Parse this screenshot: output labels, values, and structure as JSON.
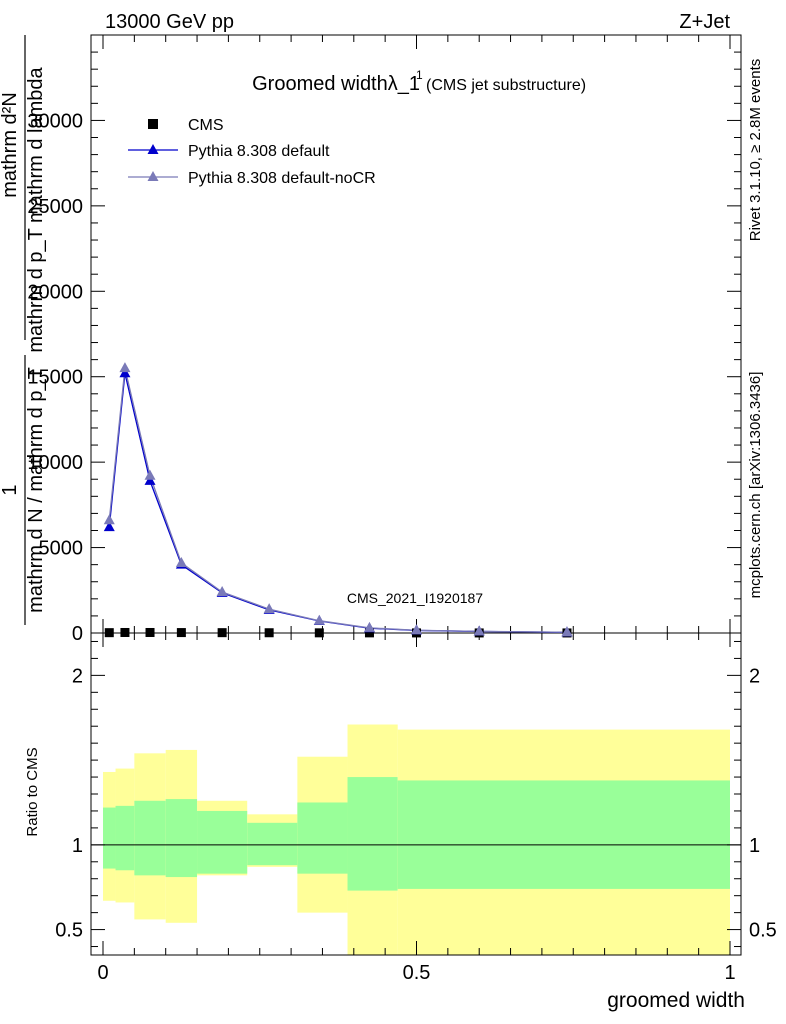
{
  "header": {
    "left": "13000 GeV pp",
    "right": "Z+Jet"
  },
  "side": {
    "rivet": "Rivet 3.1.10, ≥ 2.8M events",
    "mcplots": "mcplots.cern.ch [arXiv:1306.3436]"
  },
  "chart_data": [
    {
      "type": "line",
      "title": "Groomed widthλ_1",
      "title_sup": "1",
      "subtitle": "(CMS jet substructure)",
      "watermark": "CMS_2021_I1920187",
      "ylabel_num": "mathrm d²N",
      "ylabel_den": "mathrm d p_T mathrm d lambda",
      "ylabel_pre_num": "1",
      "ylabel_pre_den": "mathrm d N / mathrm d p_T",
      "xlim": [
        0,
        1
      ],
      "ylim": [
        0,
        35000
      ],
      "yticks": [
        0,
        5000,
        10000,
        15000,
        20000,
        25000,
        30000
      ],
      "legend_position": "top-left",
      "series": [
        {
          "name": "CMS",
          "marker": "square",
          "color": "#000000",
          "x": [
            0.01,
            0.035,
            0.075,
            0.125,
            0.19,
            0.265,
            0.345,
            0.425,
            0.5,
            0.6,
            0.74
          ],
          "y": [
            20,
            30,
            30,
            25,
            20,
            15,
            10,
            8,
            5,
            4,
            3
          ]
        },
        {
          "name": "Pythia 8.308 default",
          "marker": "triangle",
          "color": "#0000cc",
          "x": [
            0.01,
            0.035,
            0.075,
            0.125,
            0.19,
            0.265,
            0.345,
            0.425,
            0.5,
            0.6,
            0.74
          ],
          "y": [
            6200,
            15200,
            8900,
            4000,
            2350,
            1350,
            700,
            280,
            150,
            90,
            40
          ]
        },
        {
          "name": "Pythia 8.308 default-noCR",
          "marker": "triangle",
          "color": "#7a7ab8",
          "x": [
            0.01,
            0.035,
            0.075,
            0.125,
            0.19,
            0.265,
            0.345,
            0.425,
            0.5,
            0.6,
            0.74
          ],
          "y": [
            6600,
            15500,
            9200,
            4100,
            2400,
            1400,
            720,
            300,
            160,
            95,
            45
          ]
        }
      ]
    },
    {
      "type": "area",
      "ylabel": "Ratio to CMS",
      "xlabel": "groomed width",
      "xlim": [
        0,
        1
      ],
      "ylim": [
        0.35,
        2.25
      ],
      "xticks": [
        0,
        0.5,
        1
      ],
      "xtick_labels": [
        "0",
        "0.5",
        "1"
      ],
      "yticks": [
        0.5,
        1,
        2
      ],
      "ytick_labels": [
        "0.5",
        "1",
        "2"
      ],
      "bands": [
        {
          "x0": 0.0,
          "x1": 0.02,
          "inner": [
            0.86,
            1.22
          ],
          "outer": [
            0.67,
            1.43
          ]
        },
        {
          "x0": 0.02,
          "x1": 0.05,
          "inner": [
            0.85,
            1.23
          ],
          "outer": [
            0.66,
            1.45
          ]
        },
        {
          "x0": 0.05,
          "x1": 0.1,
          "inner": [
            0.82,
            1.26
          ],
          "outer": [
            0.56,
            1.54
          ]
        },
        {
          "x0": 0.1,
          "x1": 0.15,
          "inner": [
            0.81,
            1.27
          ],
          "outer": [
            0.54,
            1.56
          ]
        },
        {
          "x0": 0.15,
          "x1": 0.23,
          "inner": [
            0.83,
            1.2
          ],
          "outer": [
            0.82,
            1.26
          ]
        },
        {
          "x0": 0.23,
          "x1": 0.31,
          "inner": [
            0.88,
            1.13
          ],
          "outer": [
            0.87,
            1.18
          ]
        },
        {
          "x0": 0.31,
          "x1": 0.39,
          "inner": [
            0.83,
            1.25
          ],
          "outer": [
            0.6,
            1.52
          ]
        },
        {
          "x0": 0.39,
          "x1": 0.47,
          "inner": [
            0.73,
            1.4
          ],
          "outer": [
            0.35,
            1.71
          ]
        },
        {
          "x0": 0.47,
          "x1": 1.0,
          "inner": [
            0.74,
            1.38
          ],
          "outer": [
            0.35,
            1.68
          ]
        }
      ]
    }
  ]
}
